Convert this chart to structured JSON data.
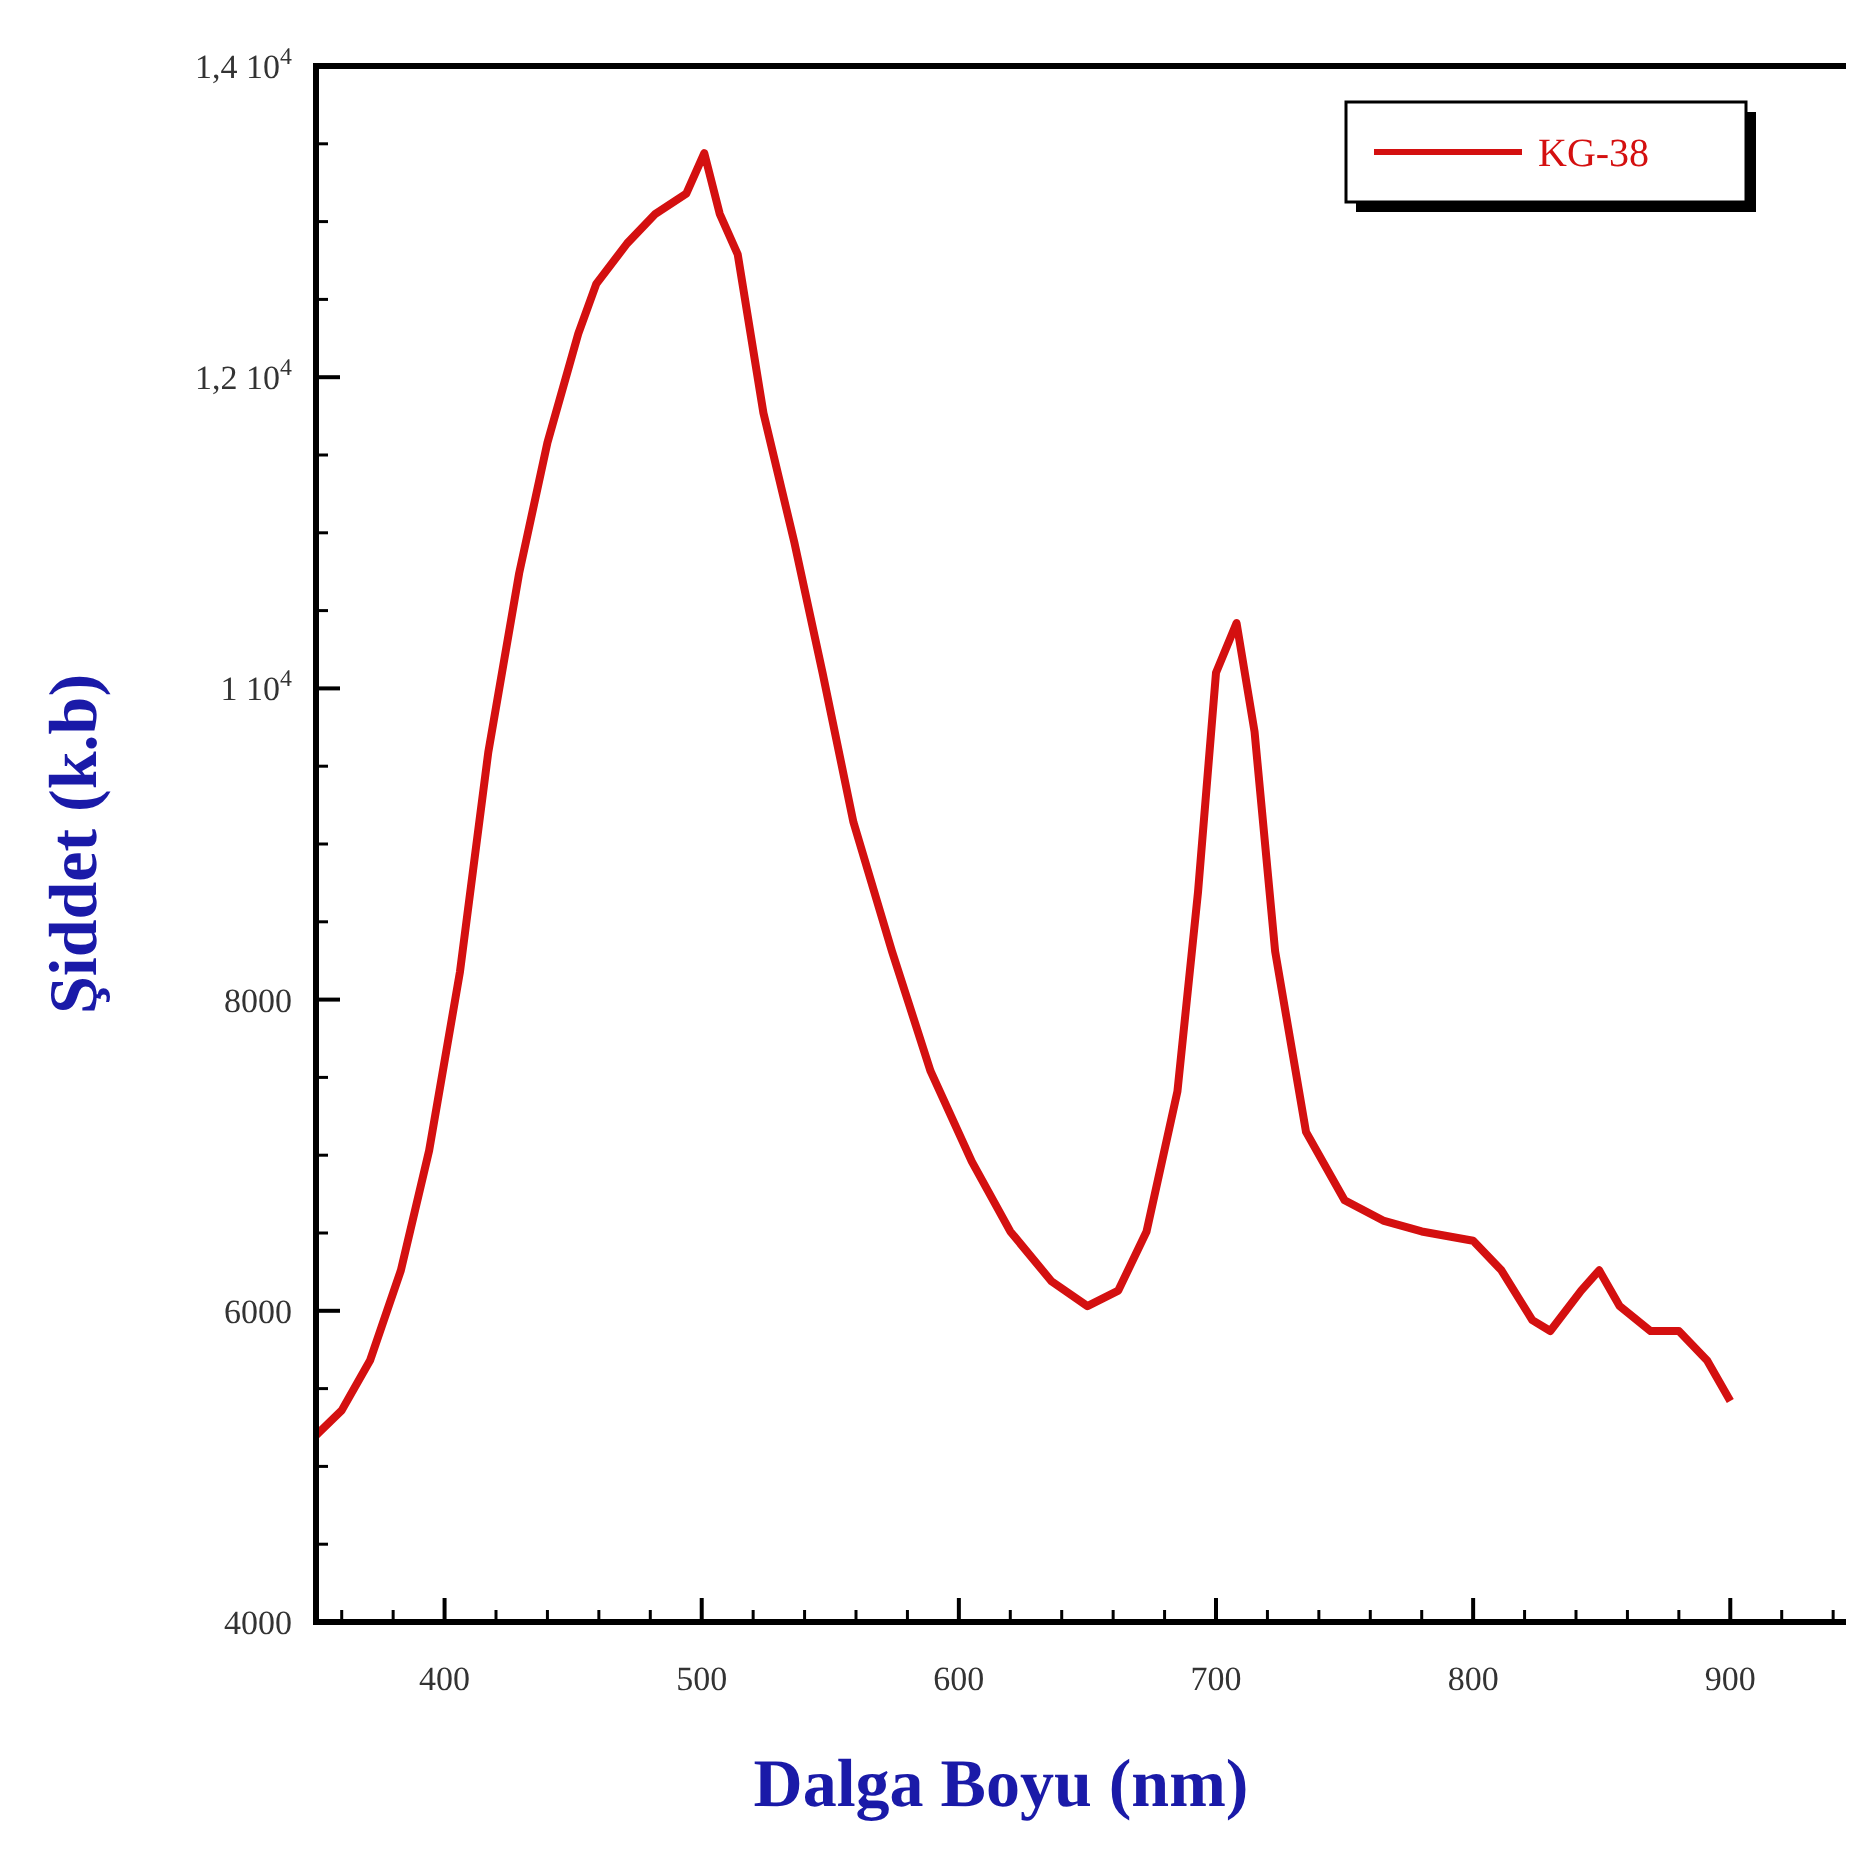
{
  "chart_data": {
    "type": "line",
    "xlabel": "Dalga Boyu (nm)",
    "ylabel": "Şiddet (k.b)",
    "xlim": [
      350,
      945
    ],
    "ylim": [
      4000,
      14000
    ],
    "xticks": [
      400,
      500,
      600,
      700,
      800,
      900
    ],
    "yticks": [
      4000,
      6000,
      8000,
      {
        "value": 10000,
        "label": "1 10$^{4}$"
      },
      {
        "value": 12000,
        "label": "1,2 10$^{4}$"
      },
      {
        "value": 14000,
        "label": "1,4 10$^{4}$"
      }
    ],
    "legend": "top right",
    "grid": false,
    "marker": "none",
    "line_style": "solid",
    "series": [
      {
        "name": "KG-38",
        "color": "#d41010",
        "x": [
          350,
          360,
          371,
          383,
          394,
          406,
          417,
          429,
          440,
          452,
          459,
          471,
          482,
          494,
          501,
          507,
          514,
          524,
          536,
          547,
          559,
          574,
          589,
          605,
          620,
          636,
          650,
          662,
          673,
          685,
          693,
          700,
          708,
          715,
          723,
          735,
          750,
          765,
          780,
          800,
          811,
          823,
          830,
          842,
          849,
          857,
          869,
          880,
          891,
          900
        ],
        "values": [
          5200,
          5360,
          5680,
          6260,
          7030,
          8180,
          9590,
          10740,
          11580,
          12280,
          12600,
          12860,
          13050,
          13180,
          13440,
          13050,
          12790,
          11770,
          10940,
          10100,
          9140,
          8310,
          7540,
          6960,
          6510,
          6190,
          6030,
          6130,
          6510,
          7410,
          8690,
          10100,
          10420,
          9720,
          8310,
          7150,
          6710,
          6580,
          6510,
          6450,
          6260,
          5940,
          5870,
          6130,
          6260,
          6030,
          5870,
          5870,
          5680,
          5420
        ]
      }
    ]
  }
}
